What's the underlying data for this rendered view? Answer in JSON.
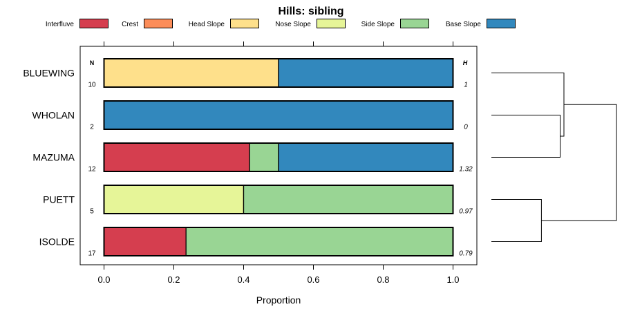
{
  "chart_data": {
    "type": "bar",
    "stacked": true,
    "orientation": "horizontal",
    "title": "Hills: sibling",
    "xlabel": "Proportion",
    "ylabel": "",
    "xlim": [
      -0.05,
      1.05
    ],
    "xticks": [
      "0.0",
      "0.2",
      "0.4",
      "0.6",
      "0.8",
      "1.0"
    ],
    "xtick_values": [
      0,
      0.2,
      0.4,
      0.6,
      0.8,
      1.0
    ],
    "n_header": "N",
    "h_header": "H",
    "legend": [
      {
        "name": "Interfluve",
        "color": "#D53E4F"
      },
      {
        "name": "Crest",
        "color": "#FC8D59"
      },
      {
        "name": "Head Slope",
        "color": "#FEE08B"
      },
      {
        "name": "Nose Slope",
        "color": "#E6F598"
      },
      {
        "name": "Side Slope",
        "color": "#99D594"
      },
      {
        "name": "Base Slope",
        "color": "#3288BD"
      }
    ],
    "categories": [
      "BLUEWING",
      "WHOLAN",
      "MAZUMA",
      "PUETT",
      "ISOLDE"
    ],
    "n_values": [
      "10",
      "2",
      "12",
      "5",
      "17"
    ],
    "h_values": [
      "1",
      "0",
      "1.32",
      "0.97",
      "0.79"
    ],
    "series": [
      {
        "name": "Interfluve",
        "values": [
          0,
          0,
          0.417,
          0,
          0.235
        ]
      },
      {
        "name": "Crest",
        "values": [
          0,
          0,
          0,
          0,
          0
        ]
      },
      {
        "name": "Head Slope",
        "values": [
          0.5,
          0,
          0,
          0,
          0
        ]
      },
      {
        "name": "Nose Slope",
        "values": [
          0,
          0,
          0,
          0.4,
          0
        ]
      },
      {
        "name": "Side Slope",
        "values": [
          0,
          0,
          0.083,
          0.6,
          0.765
        ]
      },
      {
        "name": "Base Slope",
        "values": [
          0.5,
          1,
          0.5,
          0,
          0
        ]
      }
    ],
    "dendrogram": {
      "leaves": [
        "BLUEWING",
        "WHOLAN",
        "MAZUMA",
        "PUETT",
        "ISOLDE"
      ],
      "merges": [
        {
          "a": "WHOLAN",
          "b": "MAZUMA",
          "height": 0.55
        },
        {
          "a": "BLUEWING",
          "b": "WHOLAN+MAZUMA",
          "height": 0.58
        },
        {
          "a": "PUETT",
          "b": "ISOLDE",
          "height": 0.4
        },
        {
          "a": "BLUEWING+WHOLAN+MAZUMA",
          "b": "PUETT+ISOLDE",
          "height": 1.0
        }
      ]
    }
  }
}
